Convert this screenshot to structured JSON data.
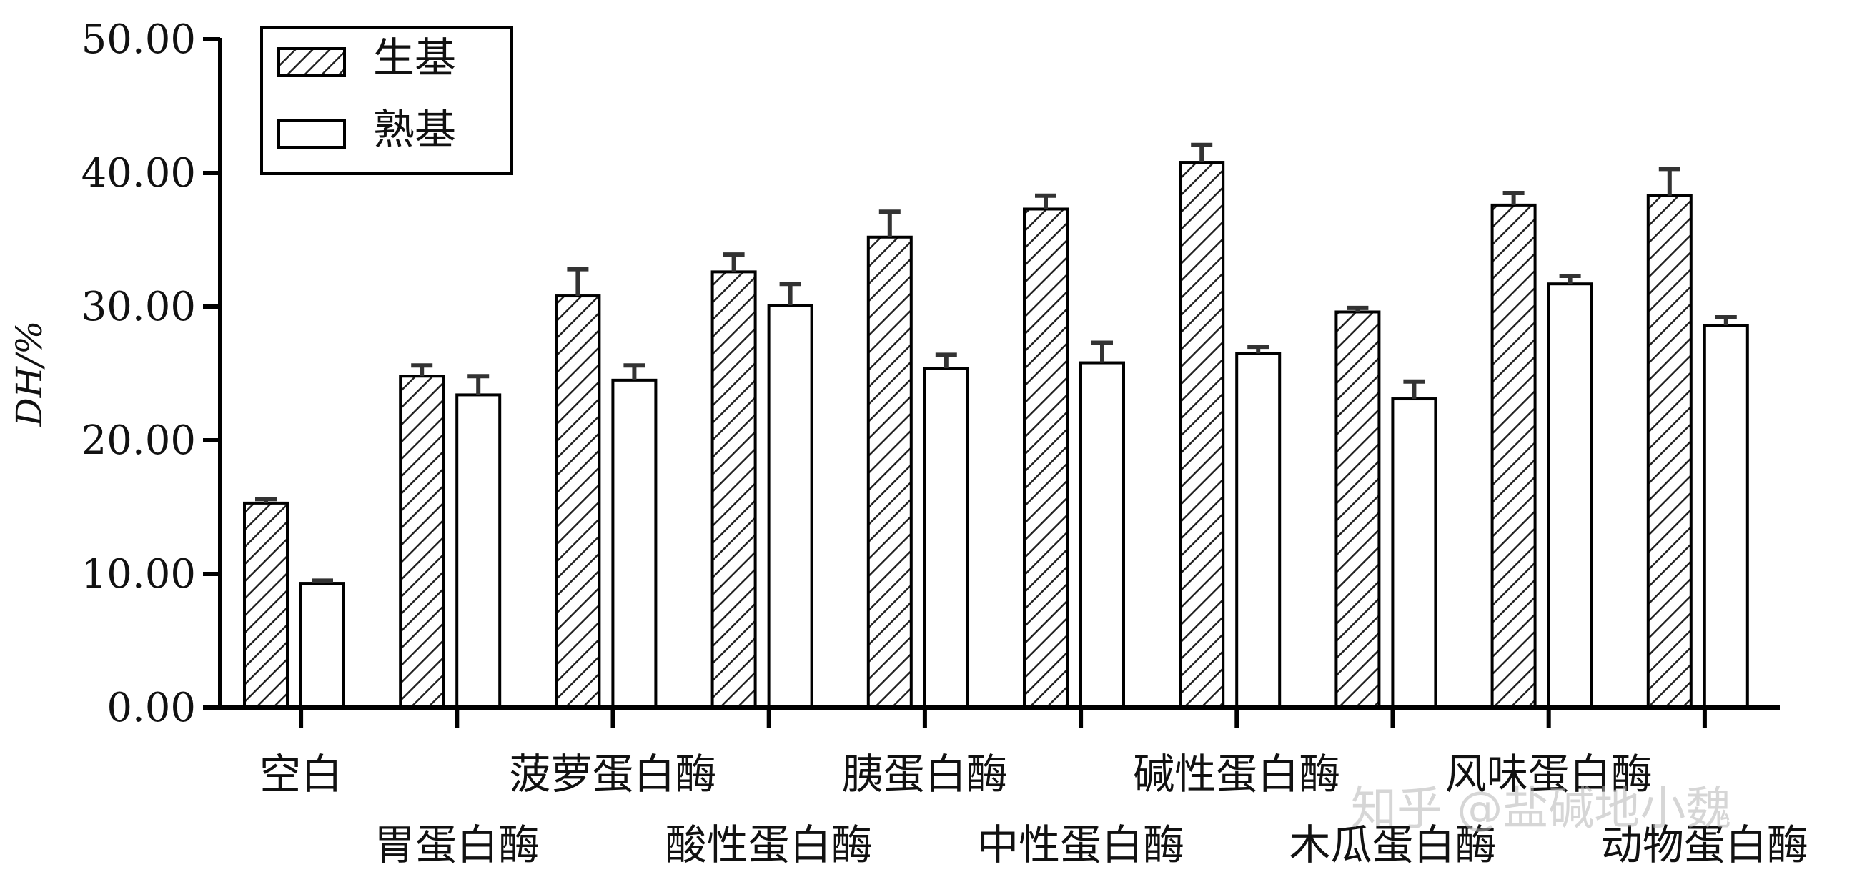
{
  "chart_data": {
    "type": "bar",
    "ylabel": "DH/%",
    "xlabel": "",
    "ylim": [
      0,
      50
    ],
    "yticks": [
      "0.00",
      "10.00",
      "20.00",
      "30.00",
      "40.00",
      "50.00"
    ],
    "grid": false,
    "legend_position": "top-left",
    "categories": [
      "空白",
      "胃蛋白酶",
      "菠萝蛋白酶",
      "酸性蛋白酶",
      "胰蛋白酶",
      "中性蛋白酶",
      "碱性蛋白酶",
      "木瓜蛋白酶",
      "风味蛋白酶",
      "动物蛋白酶"
    ],
    "series": [
      {
        "name": "生基",
        "pattern": "hatch",
        "values": [
          15.3,
          24.8,
          30.8,
          32.6,
          35.2,
          37.3,
          40.8,
          29.6,
          37.6,
          38.3
        ],
        "errors": [
          0.3,
          0.8,
          2.0,
          1.3,
          1.9,
          1.0,
          1.3,
          0.3,
          0.9,
          2.0
        ]
      },
      {
        "name": "熟基",
        "pattern": "none",
        "values": [
          9.3,
          23.4,
          24.5,
          30.1,
          25.4,
          25.8,
          26.5,
          23.1,
          31.7,
          28.6
        ],
        "errors": [
          0.2,
          1.4,
          1.1,
          1.6,
          1.0,
          1.5,
          0.5,
          1.3,
          0.6,
          0.6
        ]
      }
    ],
    "colors": {
      "axis": "#000000",
      "bar_fill": "#ffffff",
      "hatch": "#222222",
      "error_bar": "#333333"
    }
  },
  "watermark": "知乎 @盐碱地小魏"
}
